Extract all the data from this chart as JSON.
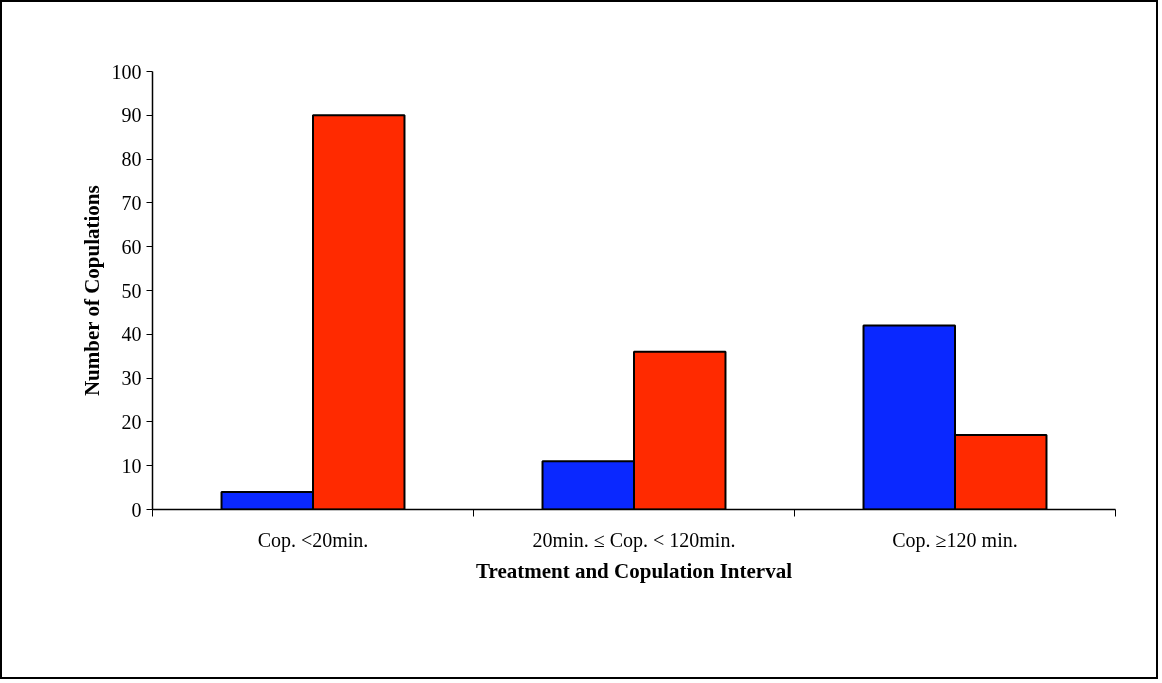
{
  "chart_data": {
    "type": "bar",
    "xlabel": "Treatment and Copulation Interval",
    "ylabel": "Number of Copulations",
    "categories": [
      "Cop. <20min.",
      "20min. ≤ Cop. < 120min.",
      "Cop. ≥120 min."
    ],
    "series": [
      {
        "color": "#0a28ff",
        "values": [
          4,
          11,
          42
        ]
      },
      {
        "color": "#ff2a00",
        "values": [
          90,
          36,
          17
        ]
      }
    ],
    "ylim": [
      0,
      100
    ],
    "yticks": [
      0,
      10,
      20,
      30,
      40,
      50,
      60,
      70,
      80,
      90,
      100
    ],
    "grid": false
  }
}
